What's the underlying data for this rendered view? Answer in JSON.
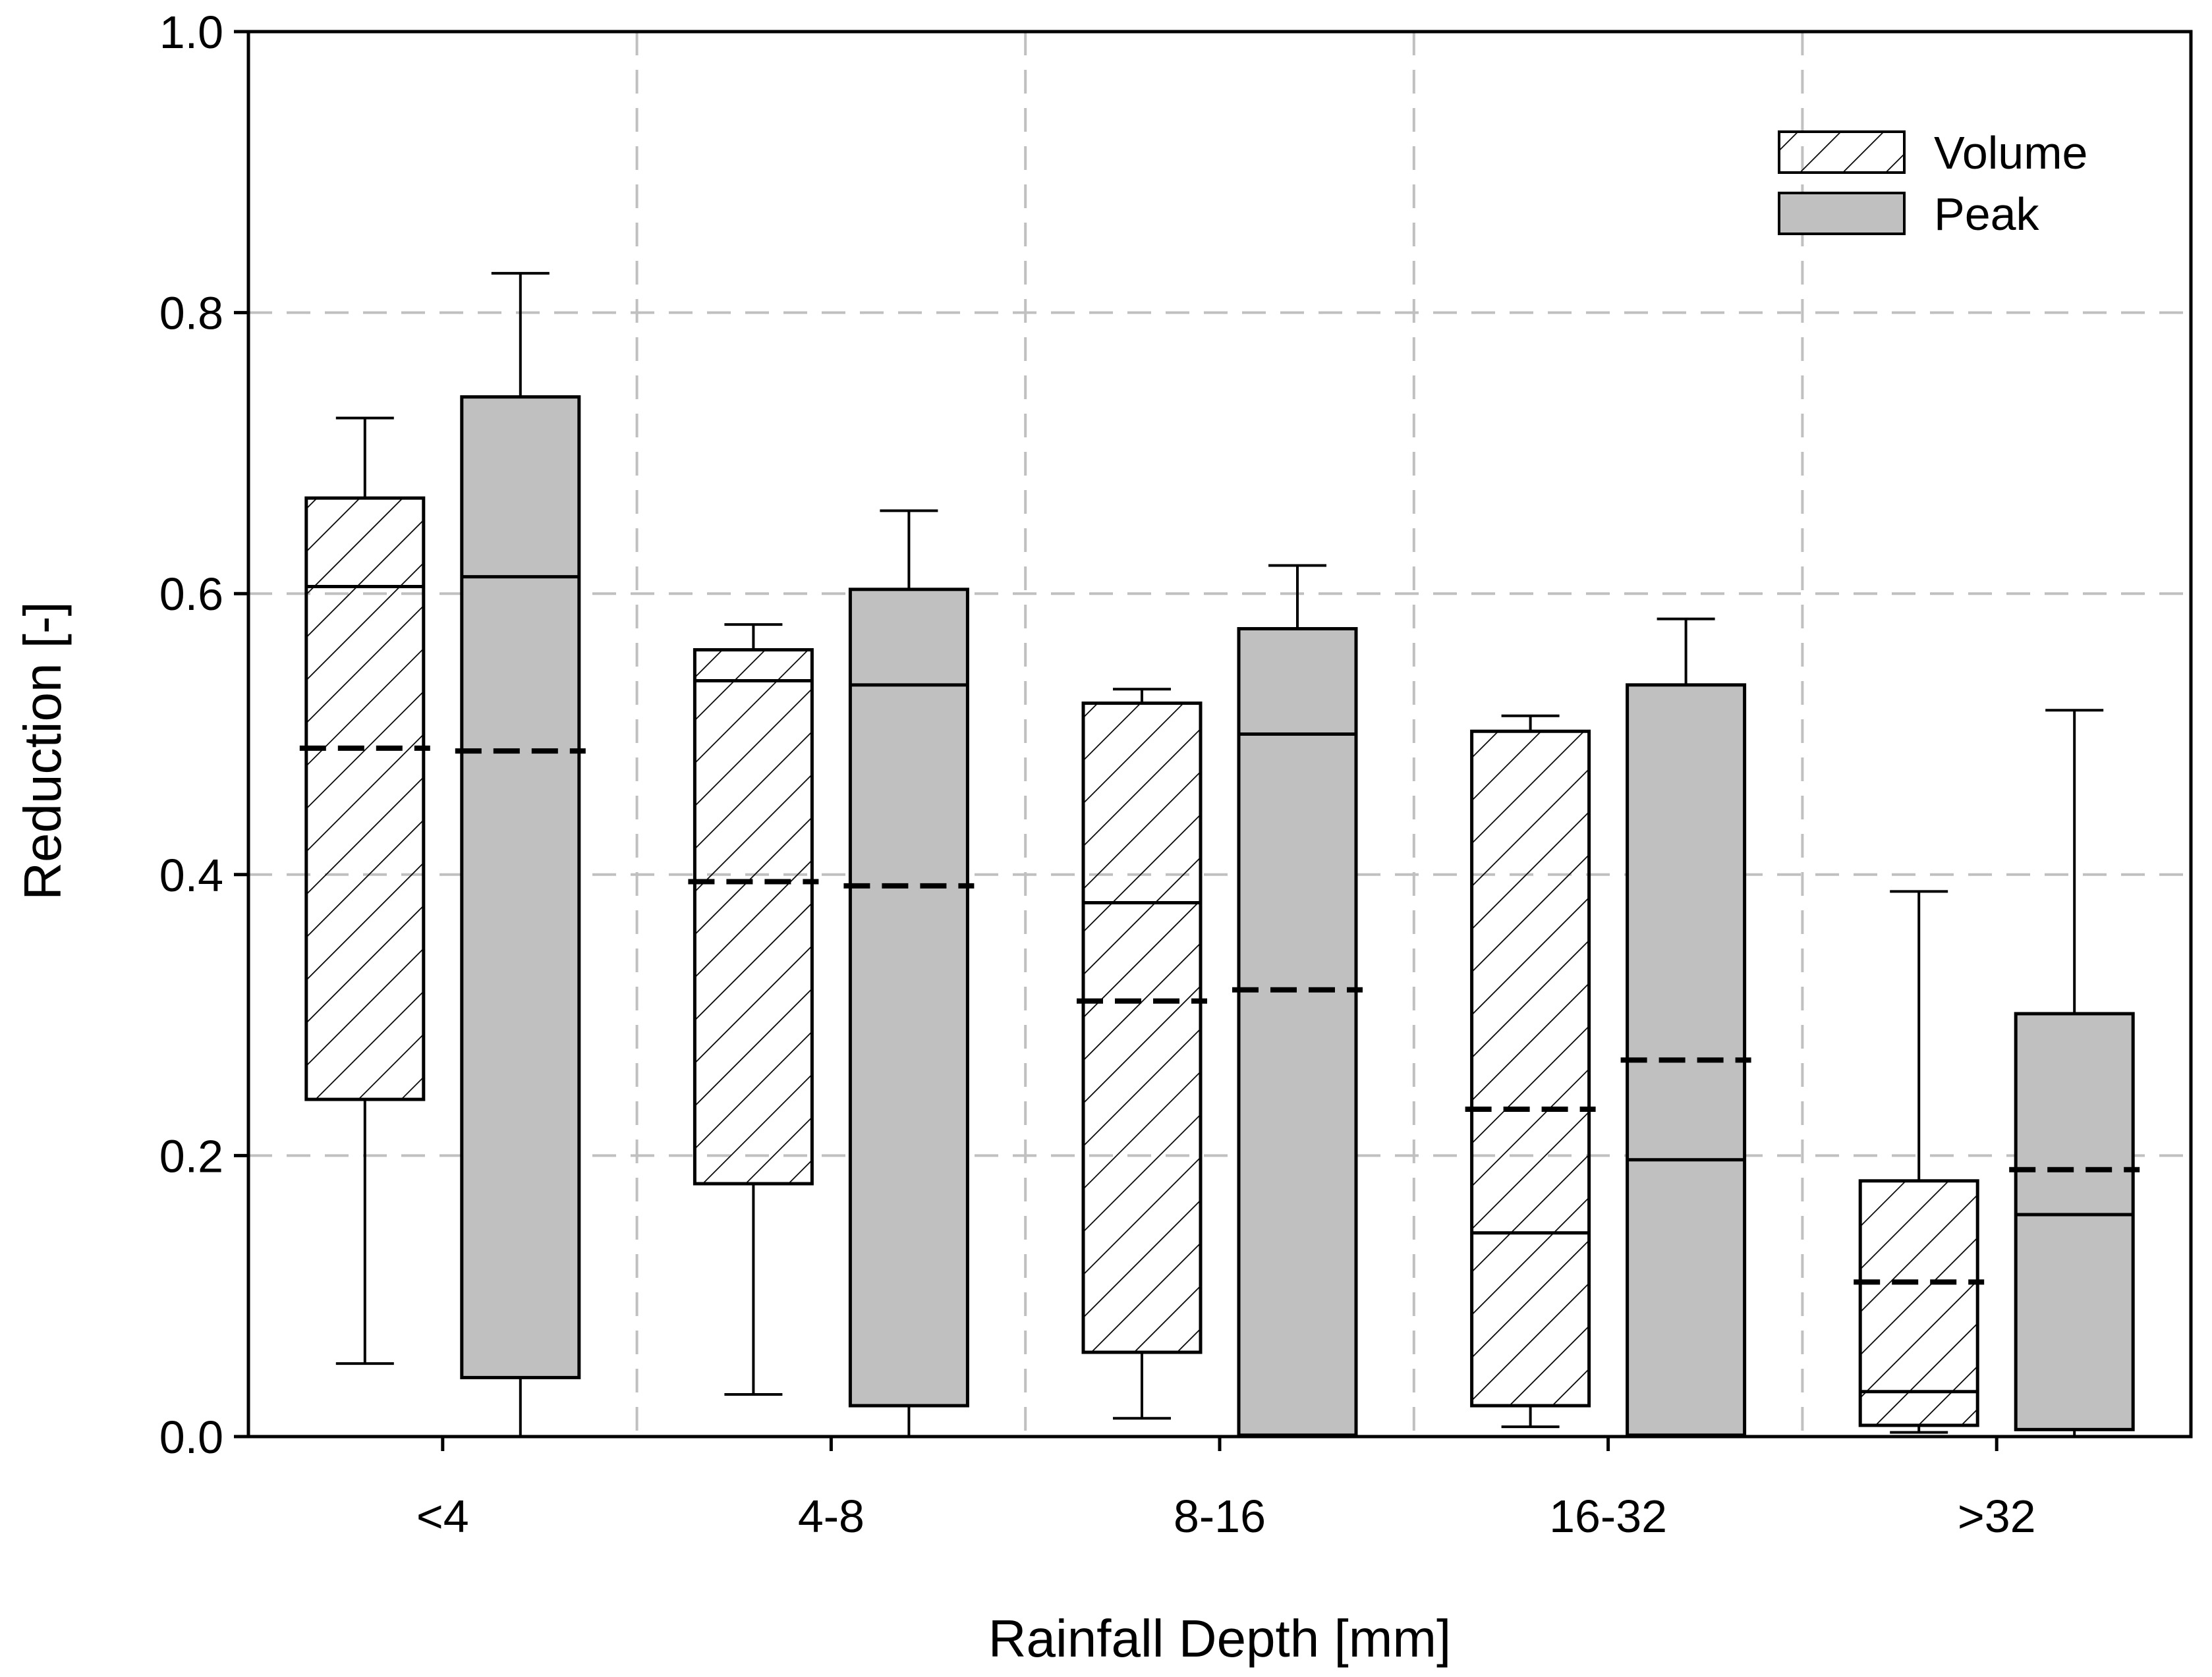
{
  "chart_data": {
    "type": "boxplot",
    "xlabel": "Rainfall Depth [mm]",
    "ylabel": "Reduction [-]",
    "ylim": [
      0,
      1
    ],
    "yticks": [
      "0.0",
      "0.2",
      "0.4",
      "0.6",
      "0.8",
      "1.0"
    ],
    "ytick_values": [
      0,
      0.2,
      0.4,
      0.6,
      0.8,
      1.0
    ],
    "grid": "dashed, both axes",
    "legend_position": "top-right",
    "categories": [
      "<4",
      "4-8",
      "8-16",
      "16-32",
      ">32"
    ],
    "series": [
      {
        "name": "Volume",
        "fill": "hatched",
        "boxes": [
          {
            "whisker_low": 0.052,
            "q1": 0.24,
            "median": 0.605,
            "mean": 0.49,
            "q3": 0.668,
            "whisker_high": 0.725
          },
          {
            "whisker_low": 0.03,
            "q1": 0.18,
            "median": 0.538,
            "mean": 0.395,
            "q3": 0.56,
            "whisker_high": 0.578
          },
          {
            "whisker_low": 0.013,
            "q1": 0.06,
            "median": 0.38,
            "mean": 0.31,
            "q3": 0.522,
            "whisker_high": 0.532
          },
          {
            "whisker_low": 0.007,
            "q1": 0.022,
            "median": 0.145,
            "mean": 0.233,
            "q3": 0.502,
            "whisker_high": 0.513
          },
          {
            "whisker_low": 0.003,
            "q1": 0.008,
            "median": 0.032,
            "mean": 0.11,
            "q3": 0.182,
            "whisker_high": 0.388
          }
        ]
      },
      {
        "name": "Peak",
        "fill": "#c0c0c0",
        "boxes": [
          {
            "whisker_low": 0.0,
            "q1": 0.042,
            "median": 0.612,
            "mean": 0.488,
            "q3": 0.74,
            "whisker_high": 0.828
          },
          {
            "whisker_low": 0.0,
            "q1": 0.022,
            "median": 0.535,
            "mean": 0.392,
            "q3": 0.603,
            "whisker_high": 0.659
          },
          {
            "whisker_low": 0.0,
            "q1": 0.001,
            "median": 0.5,
            "mean": 0.318,
            "q3": 0.575,
            "whisker_high": 0.62
          },
          {
            "whisker_low": 0.0,
            "q1": 0.001,
            "median": 0.197,
            "mean": 0.268,
            "q3": 0.535,
            "whisker_high": 0.582
          },
          {
            "whisker_low": 0.0,
            "q1": 0.005,
            "median": 0.158,
            "mean": 0.19,
            "q3": 0.301,
            "whisker_high": 0.517
          }
        ]
      }
    ],
    "colors": {
      "axis": "#000000",
      "grid": "#c0c0c0",
      "peak_fill": "#c0c0c0",
      "volume_fill": "#ffffff",
      "hatch": "#000000"
    }
  }
}
